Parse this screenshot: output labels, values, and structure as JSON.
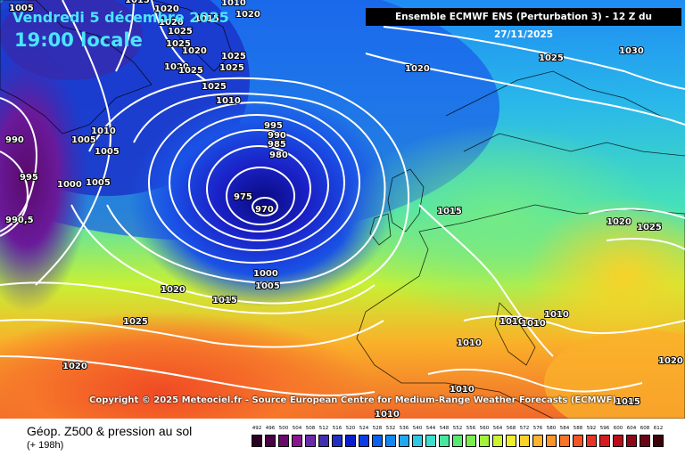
{
  "header": {
    "date_line": "Vendredi 5 décembre 2025",
    "time_line": "19:00 locale",
    "run_info": "Ensemble ECMWF ENS  (Perturbation 3)  -  12 Z du 27/11/2025"
  },
  "copyright": "Copyright © 2025 Meteociel.fr - Source European Centre for Medium-Range Weather Forecasts (ECMWF)",
  "footer": {
    "title": "Géop. Z500 & pression au sol",
    "subtitle": "(+ 198h)"
  },
  "legend": {
    "ticks": [
      "492",
      "496",
      "500",
      "504",
      "508",
      "512",
      "516",
      "520",
      "524",
      "528",
      "532",
      "536",
      "540",
      "544",
      "548",
      "552",
      "556",
      "560",
      "564",
      "568",
      "572",
      "576",
      "580",
      "584",
      "588",
      "592",
      "596",
      "600",
      "604",
      "608",
      "612"
    ],
    "colors": [
      "#2b0024",
      "#4a0044",
      "#6a0a6a",
      "#8a1590",
      "#6a2aa8",
      "#4030b0",
      "#2030c0",
      "#0a1ed0",
      "#0a3ce8",
      "#0a60f0",
      "#1288f5",
      "#20a8f0",
      "#2dc8e6",
      "#3ae0cc",
      "#46e89e",
      "#58ea70",
      "#7cee4a",
      "#a4f23a",
      "#cdf230",
      "#f0ee2a",
      "#fad228",
      "#fcb428",
      "#fc9428",
      "#fa7428",
      "#f45426",
      "#e83424",
      "#d41c20",
      "#b80c1c",
      "#900818",
      "#680414",
      "#3c0208"
    ]
  },
  "pressure_labels": [
    "1005",
    "1010",
    "1015",
    "1020",
    "1025",
    "1030",
    "995",
    "990",
    "985",
    "980",
    "975",
    "970",
    "1000",
    "990,5"
  ],
  "map_colors": {
    "deep_low": "#1a0aa8",
    "trough": "#4a0e90",
    "cold_purple": "#7a1a8a",
    "high_orange": "#f46a2a",
    "land_green": "#64e864"
  }
}
